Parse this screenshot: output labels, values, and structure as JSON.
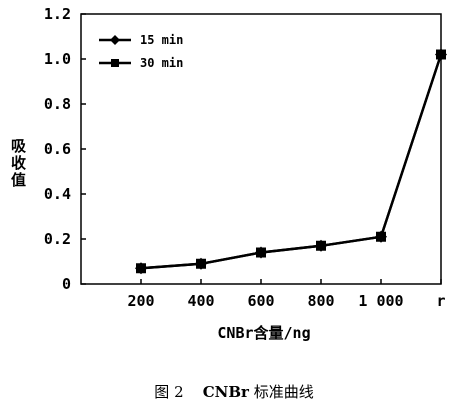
{
  "chart_data": {
    "type": "line",
    "categories": [
      "200",
      "400",
      "600",
      "800",
      "1 000",
      "r"
    ],
    "series": [
      {
        "name": "15 min",
        "marker": "diamond",
        "values": [
          0.07,
          0.09,
          0.14,
          0.17,
          0.21,
          1.02
        ]
      },
      {
        "name": "30 min",
        "marker": "square",
        "values": [
          0.07,
          0.09,
          0.14,
          0.17,
          0.21,
          1.02
        ]
      }
    ],
    "xlabel": "CNBr含量/ng",
    "ylabel": "吸收值",
    "ylim": [
      0,
      1.2
    ],
    "yticks": [
      "0",
      "0.2",
      "0.4",
      "0.6",
      "0.8",
      "1.0",
      "1.2"
    ],
    "grid": false,
    "legend_position": "top-left",
    "line_color": "#000000"
  },
  "caption": {
    "label": "图 2",
    "bold_part": "CNBr",
    "rest": " 标准曲线"
  }
}
